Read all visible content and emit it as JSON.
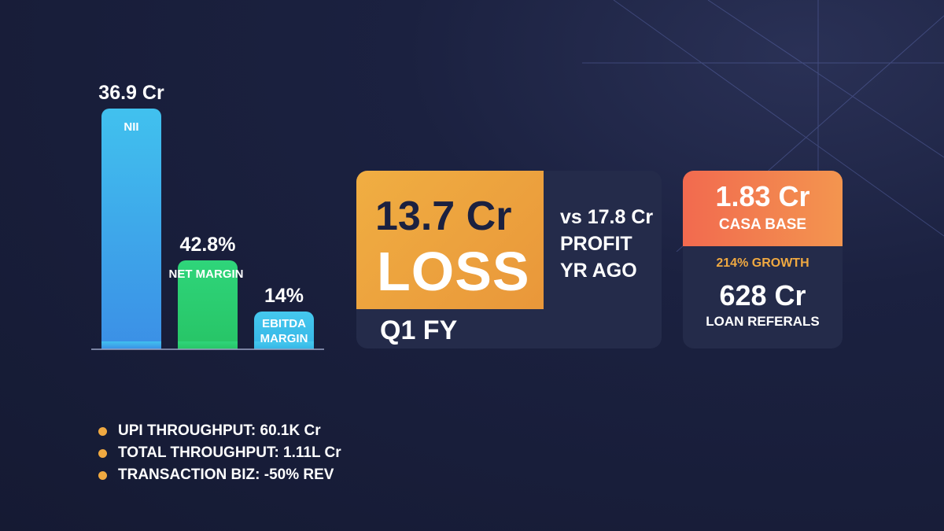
{
  "chart_data": {
    "type": "bar",
    "categories": [
      "NII",
      "NET MARGIN",
      "EBITDA MARGIN"
    ],
    "values": [
      36.9,
      42.8,
      14
    ],
    "value_labels": [
      "36.9 Cr",
      "42.8%",
      "14%"
    ],
    "title": "",
    "xlabel": "",
    "ylabel": "",
    "colors": [
      "#3fa0ea",
      "#2ecc71",
      "#41c3ea"
    ]
  },
  "loss_card": {
    "value": "13.7 Cr",
    "word": "LOSS",
    "period": "Q1 FY",
    "compare_lines": [
      "vs 17.8 Cr",
      "PROFIT",
      "YR AGO"
    ]
  },
  "casa_card": {
    "value": "1.83 Cr",
    "label": "CASA BASE",
    "growth": "214% GROWTH",
    "loan_value": "628 Cr",
    "loan_label": "LOAN REFERALS"
  },
  "bullets": [
    "UPI THROUGHPUT: 60.1K Cr",
    "TOTAL THROUGHPUT: 1.11L Cr",
    "TRANSACTION BIZ: -50% REV"
  ],
  "colors": {
    "background": "#151a33",
    "card": "#242b4a",
    "accent_orange": "#f0a941",
    "accent_red": "#f26a4f"
  }
}
